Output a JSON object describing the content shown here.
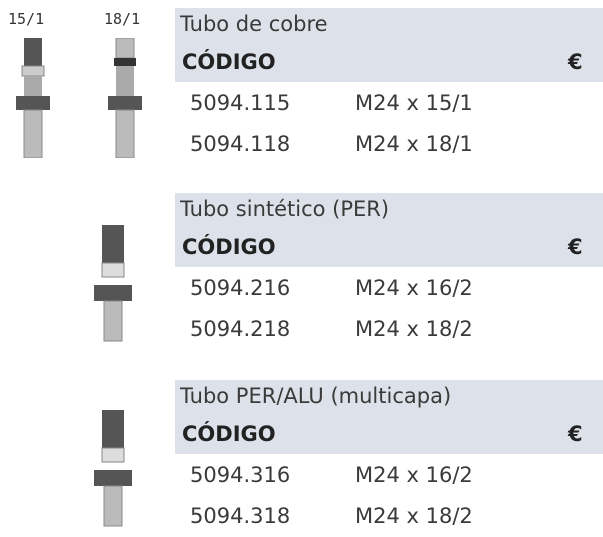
{
  "image_labels": [
    "15/1",
    "18/1"
  ],
  "sections": [
    {
      "title": "Tubo de cobre",
      "header": {
        "code": "CÓDIGO",
        "currency": "€"
      },
      "rows": [
        [
          "5094.115",
          "M24 x 15/1"
        ],
        [
          "5094.118",
          "M24 x 18/1"
        ]
      ]
    },
    {
      "title": "Tubo sintético (PER)",
      "header": {
        "code": "CÓDIGO",
        "currency": "€"
      },
      "rows": [
        [
          "5094.216",
          "M24 x 16/2"
        ],
        [
          "5094.218",
          "M24 x 18/2"
        ]
      ]
    },
    {
      "title": "Tubo PER/ALU (multicapa)",
      "header": {
        "code": "CÓDIGO",
        "currency": "€"
      },
      "rows": [
        [
          "5094.316",
          "M24 x 16/2"
        ],
        [
          "5094.318",
          "M24 x 18/2"
        ]
      ]
    }
  ]
}
